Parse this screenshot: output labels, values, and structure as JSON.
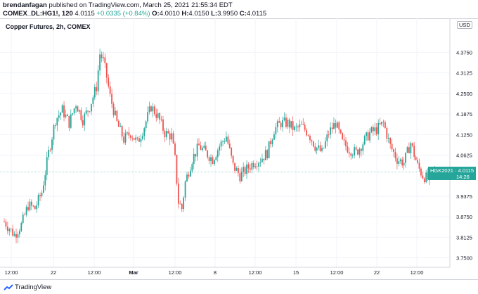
{
  "header": {
    "author": "brendanfagan",
    "published": "published on TradingView.com, March 25, 2021 21:55:34 EDT",
    "symbol": "COMEX_DL:HG1!, 120",
    "last": "4.0115",
    "change": "+0.0335 (+0.84%)",
    "o_label": "O:",
    "o": "4.0010",
    "h_label": "H:",
    "h": "4.0150",
    "l_label": "L:",
    "l": "3.9950",
    "c_label": "C:",
    "c": "4.0115"
  },
  "chart_title": "Copper Futures, 2h, COMEX",
  "currency": "USD",
  "price_label": {
    "symbol_price": "HGK2021 · 4.0115",
    "countdown": "14:26"
  },
  "footer": {
    "brand": "TradingView"
  },
  "colors": {
    "up": "#26a69a",
    "down": "#ef5350",
    "grid": "#f0f3fa",
    "axis": "#131722"
  },
  "chart_data": {
    "type": "candlestick",
    "title": "Copper Futures, 2h, COMEX",
    "y_axis_labels": [
      "4.3750",
      "4.3125",
      "4.2500",
      "4.1875",
      "4.1250",
      "4.0625",
      "3.9375",
      "3.8750",
      "3.8125",
      "3.7500"
    ],
    "x_axis_labels": [
      "12:00",
      "22",
      "12:00",
      "Mar",
      "12:00",
      "8",
      "12:00",
      "15",
      "12:00",
      "22",
      "12:00"
    ],
    "ylim": [
      3.73,
      4.44
    ],
    "last_price": 4.0115,
    "anchors": [
      [
        0,
        3.86
      ],
      [
        6,
        3.82
      ],
      [
        10,
        3.85
      ],
      [
        14,
        3.91
      ],
      [
        18,
        3.9
      ],
      [
        22,
        3.95
      ],
      [
        26,
        4.07
      ],
      [
        30,
        4.17
      ],
      [
        34,
        4.2
      ],
      [
        38,
        4.16
      ],
      [
        42,
        4.22
      ],
      [
        46,
        4.17
      ],
      [
        50,
        4.21
      ],
      [
        54,
        4.27
      ],
      [
        56,
        4.37
      ],
      [
        58,
        4.35
      ],
      [
        60,
        4.3
      ],
      [
        62,
        4.24
      ],
      [
        66,
        4.16
      ],
      [
        70,
        4.11
      ],
      [
        74,
        4.13
      ],
      [
        78,
        4.1
      ],
      [
        82,
        4.15
      ],
      [
        86,
        4.21
      ],
      [
        90,
        4.18
      ],
      [
        94,
        4.13
      ],
      [
        98,
        4.12
      ],
      [
        100,
        4.05
      ],
      [
        102,
        3.92
      ],
      [
        104,
        3.9
      ],
      [
        106,
        3.98
      ],
      [
        110,
        4.05
      ],
      [
        114,
        4.09
      ],
      [
        118,
        4.07
      ],
      [
        122,
        4.05
      ],
      [
        126,
        4.09
      ],
      [
        130,
        4.12
      ],
      [
        134,
        4.03
      ],
      [
        138,
        4.0
      ],
      [
        142,
        4.02
      ],
      [
        146,
        4.04
      ],
      [
        150,
        4.05
      ],
      [
        154,
        4.07
      ],
      [
        158,
        4.14
      ],
      [
        162,
        4.16
      ],
      [
        166,
        4.16
      ],
      [
        170,
        4.14
      ],
      [
        174,
        4.15
      ],
      [
        178,
        4.13
      ],
      [
        182,
        4.09
      ],
      [
        186,
        4.07
      ],
      [
        190,
        4.13
      ],
      [
        194,
        4.16
      ],
      [
        198,
        4.1
      ],
      [
        202,
        4.08
      ],
      [
        206,
        4.07
      ],
      [
        210,
        4.1
      ],
      [
        214,
        4.13
      ],
      [
        218,
        4.14
      ],
      [
        222,
        4.16
      ],
      [
        226,
        4.09
      ],
      [
        230,
        4.05
      ],
      [
        234,
        4.04
      ],
      [
        238,
        4.1
      ],
      [
        242,
        4.03
      ],
      [
        245,
        4.0
      ],
      [
        248,
        3.99
      ],
      [
        252,
        4.01
      ]
    ]
  }
}
